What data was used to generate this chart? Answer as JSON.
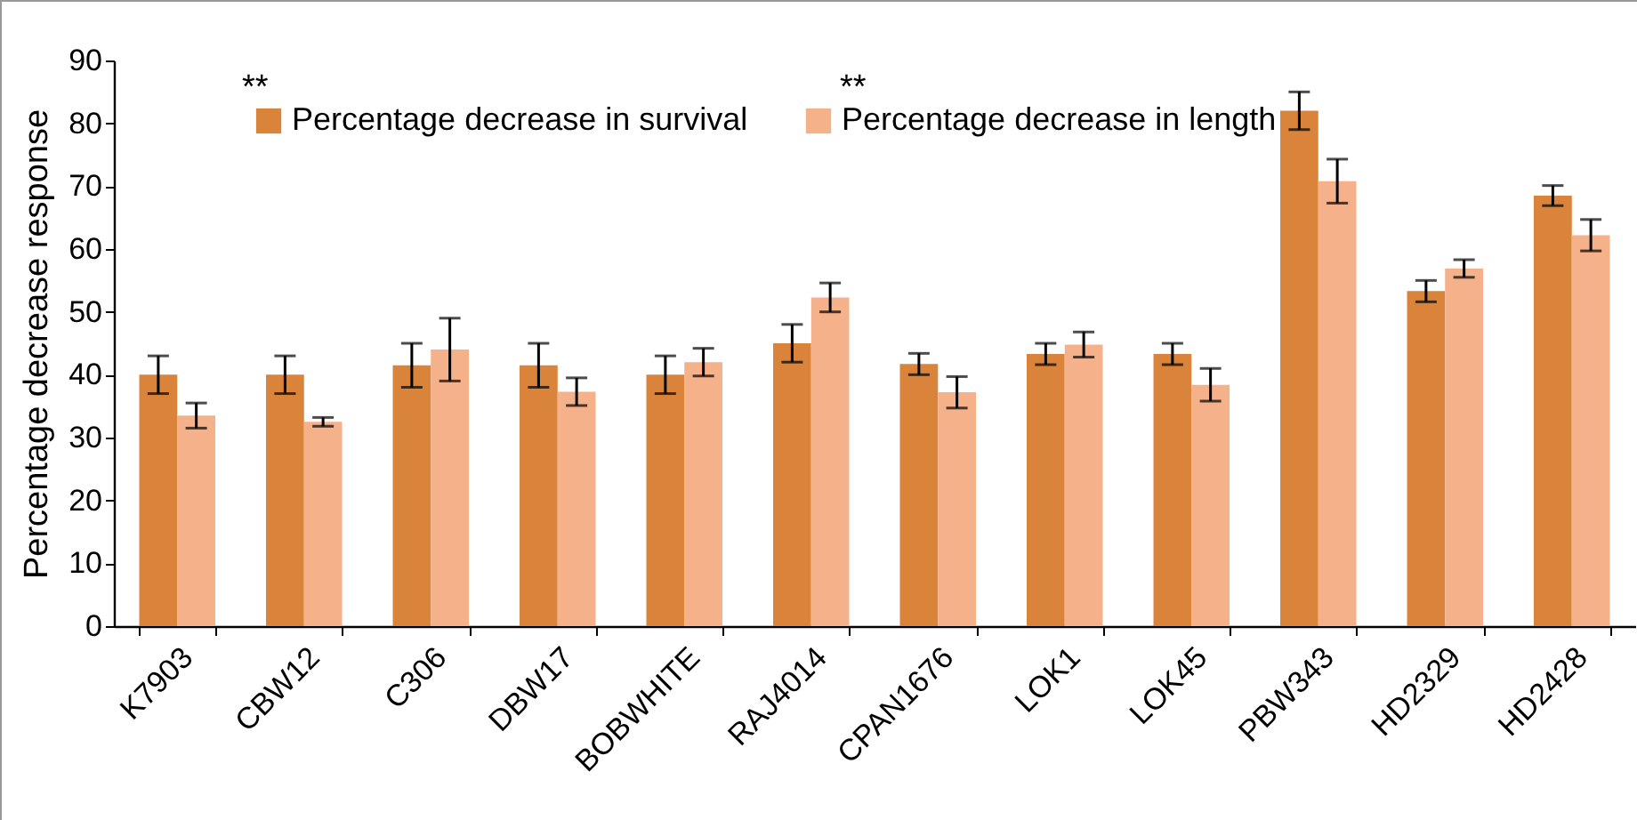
{
  "chart_data": {
    "type": "bar",
    "ylabel": "Percentage decrease response",
    "categories": [
      "K7903",
      "CBW12",
      "C306",
      "DBW17",
      "BOBWHITE",
      "RAJ4014",
      "CPAN1676",
      "LOK1",
      "LOK45",
      "PBW343",
      "HD2329",
      "HD2428"
    ],
    "series": [
      {
        "name": "Percentage decrease in survival",
        "color": "#d9843a",
        "values": [
          40,
          40,
          41.5,
          41.5,
          40,
          45,
          41.7,
          43.3,
          43.3,
          82,
          53.3,
          68.5
        ],
        "errors": [
          3,
          3,
          3.5,
          3.5,
          3,
          3,
          1.7,
          1.7,
          1.7,
          3,
          1.7,
          1.6
        ]
      },
      {
        "name": "Percentage decrease in length",
        "color": "#f5b18a",
        "values": [
          33.5,
          32.5,
          44,
          37.3,
          42,
          52.3,
          37.2,
          44.8,
          38.4,
          70.8,
          56.9,
          62.2
        ],
        "errors": [
          2,
          0.7,
          5,
          2.2,
          2.2,
          2.3,
          2.5,
          2,
          2.6,
          3.5,
          1.4,
          2.5
        ]
      }
    ],
    "ylim": [
      0,
      90
    ],
    "yticks": [
      0,
      10,
      20,
      30,
      40,
      50,
      60,
      70,
      80,
      90
    ],
    "annotations": [
      "**",
      "**"
    ],
    "legend": "top",
    "grid": false
  }
}
